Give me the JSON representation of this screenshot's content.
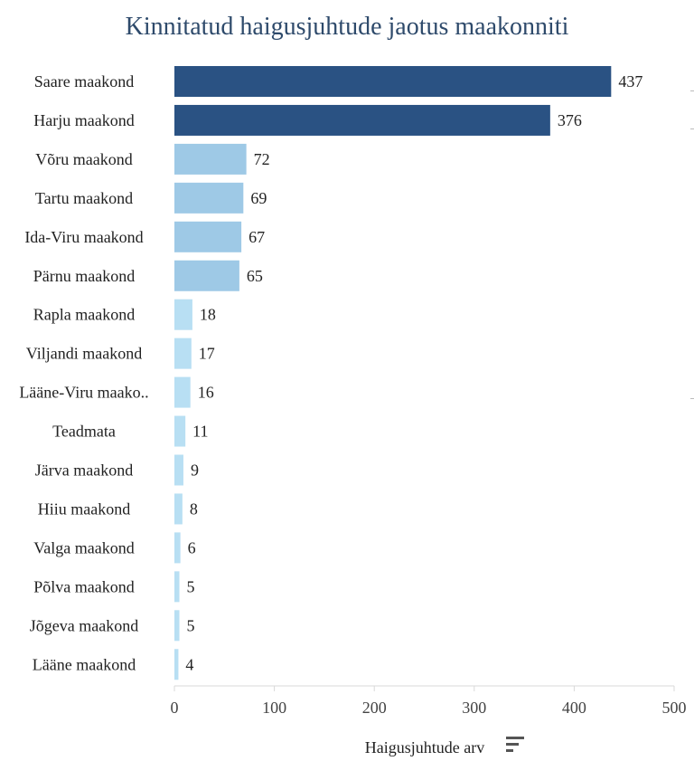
{
  "chart_data": {
    "type": "bar",
    "orientation": "horizontal",
    "title": "Kinnitatud haigusjuhtude jaotus maakonniti",
    "xlabel": "Haigusjuhtude arv",
    "ylabel": "",
    "xlim": [
      0,
      500
    ],
    "xticks": [
      "0",
      "100",
      "200",
      "300",
      "400",
      "500"
    ],
    "categories": [
      "Saare maakond",
      "Harju maakond",
      "Võru maakond",
      "Tartu maakond",
      "Ida-Viru maakond",
      "Pärnu maakond",
      "Rapla maakond",
      "Viljandi maakond",
      "Lääne-Viru maako..",
      "Teadmata",
      "Järva maakond",
      "Hiiu maakond",
      "Valga maakond",
      "Põlva maakond",
      "Jõgeva maakond",
      "Lääne maakond"
    ],
    "values": [
      437,
      376,
      72,
      69,
      67,
      65,
      18,
      17,
      16,
      11,
      9,
      8,
      6,
      5,
      5,
      4
    ],
    "colors": {
      "high": "#2a5283",
      "medium": "#9ec9e6",
      "low": "#b8dff3"
    },
    "grid": false,
    "legend": "none"
  },
  "icons": {
    "sort": "sort-icon"
  }
}
